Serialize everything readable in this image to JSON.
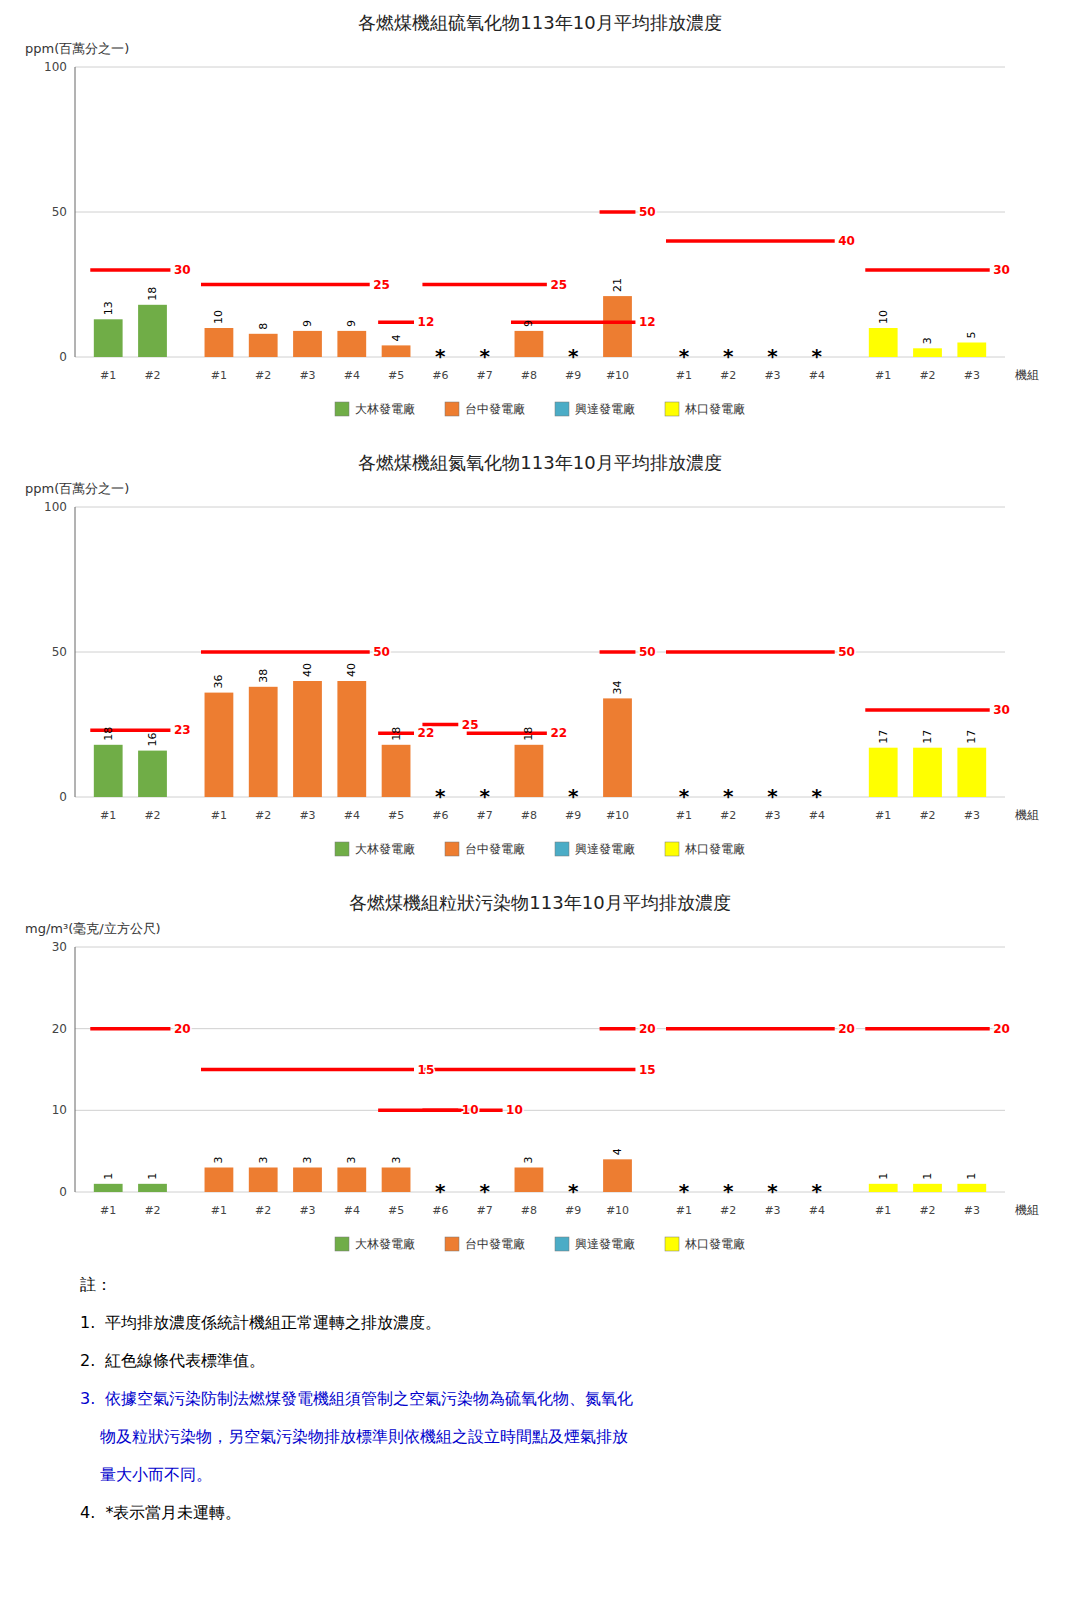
{
  "chart_data": [
    {
      "type": "bar",
      "title": "各燃煤機組硫氧化物113年10月平均排放濃度",
      "y_label": "ppm(百萬分之一)",
      "x_label": "機組",
      "ylim": [
        0,
        100
      ],
      "yticks": [
        0,
        50,
        100
      ],
      "grid": true,
      "legend": "bottom",
      "data_labels": true,
      "series": [
        {
          "name": "大林發電廠",
          "color": "#70AD47",
          "categories": [
            "#1",
            "#2"
          ],
          "values": [
            13,
            18
          ],
          "value_labels": [
            "13",
            "18"
          ]
        },
        {
          "name": "台中發電廠",
          "color": "#ED7D31",
          "categories": [
            "#1",
            "#2",
            "#3",
            "#4",
            "#5",
            "#6",
            "#7",
            "#8",
            "#9",
            "#10"
          ],
          "values": [
            10,
            8,
            9,
            9,
            4,
            null,
            null,
            9,
            null,
            21
          ],
          "value_labels": [
            "10",
            "8",
            "9",
            "9",
            "4",
            "*",
            "*",
            "9",
            "*",
            "21"
          ]
        },
        {
          "name": "興達發電廠",
          "color": "#4BACC6",
          "categories": [
            "#1",
            "#2",
            "#3",
            "#4"
          ],
          "values": [
            null,
            null,
            null,
            null
          ],
          "value_labels": [
            "*",
            "*",
            "*",
            "*"
          ]
        },
        {
          "name": "林口發電廠",
          "color": "#FFFF00",
          "categories": [
            "#1",
            "#2",
            "#3"
          ],
          "values": [
            10,
            3,
            5
          ],
          "value_labels": [
            "10",
            "3",
            "5"
          ]
        }
      ],
      "standards": [
        {
          "value": 30,
          "from": 0,
          "to": 1,
          "color": "#FF0000"
        },
        {
          "value": 25,
          "from": 2,
          "to": 5,
          "color": "#FF0000"
        },
        {
          "value": 12,
          "from": 6,
          "to": 6,
          "color": "#FF0000"
        },
        {
          "value": 25,
          "from": 7,
          "to": 9,
          "color": "#FF0000"
        },
        {
          "value": 12,
          "from": 9,
          "to": 11,
          "color": "#FF0000"
        },
        {
          "value": 50,
          "from": 11,
          "to": 11,
          "color": "#FF0000"
        },
        {
          "value": 40,
          "from": 12,
          "to": 15,
          "color": "#FF0000"
        },
        {
          "value": 30,
          "from": 16,
          "to": 18,
          "color": "#FF0000"
        }
      ]
    },
    {
      "type": "bar",
      "title": "各燃煤機組氮氧化物113年10月平均排放濃度",
      "y_label": "ppm(百萬分之一)",
      "x_label": "機組",
      "ylim": [
        0,
        100
      ],
      "yticks": [
        0,
        50,
        100
      ],
      "grid": true,
      "legend": "bottom",
      "data_labels": true,
      "series": [
        {
          "name": "大林發電廠",
          "color": "#70AD47",
          "categories": [
            "#1",
            "#2"
          ],
          "values": [
            18,
            16
          ],
          "value_labels": [
            "18",
            "16"
          ]
        },
        {
          "name": "台中發電廠",
          "color": "#ED7D31",
          "categories": [
            "#1",
            "#2",
            "#3",
            "#4",
            "#5",
            "#6",
            "#7",
            "#8",
            "#9",
            "#10"
          ],
          "values": [
            36,
            38,
            40,
            40,
            18,
            null,
            null,
            18,
            null,
            34
          ],
          "value_labels": [
            "36",
            "38",
            "40",
            "40",
            "18",
            "*",
            "*",
            "18",
            "*",
            "34"
          ]
        },
        {
          "name": "興達發電廠",
          "color": "#4BACC6",
          "categories": [
            "#1",
            "#2",
            "#3",
            "#4"
          ],
          "values": [
            null,
            null,
            null,
            null
          ],
          "value_labels": [
            "*",
            "*",
            "*",
            "*"
          ]
        },
        {
          "name": "林口發電廠",
          "color": "#FFFF00",
          "categories": [
            "#1",
            "#2",
            "#3"
          ],
          "values": [
            17,
            17,
            17
          ],
          "value_labels": [
            "17",
            "17",
            "17"
          ]
        }
      ],
      "standards": [
        {
          "value": 23,
          "from": 0,
          "to": 1,
          "color": "#FF0000"
        },
        {
          "value": 50,
          "from": 2,
          "to": 5,
          "color": "#FF0000"
        },
        {
          "value": 22,
          "from": 6,
          "to": 6,
          "color": "#FF0000"
        },
        {
          "value": 25,
          "from": 7,
          "to": 7,
          "color": "#FF0000"
        },
        {
          "value": 22,
          "from": 8,
          "to": 9,
          "color": "#FF0000"
        },
        {
          "value": 50,
          "from": 11,
          "to": 11,
          "color": "#FF0000"
        },
        {
          "value": 50,
          "from": 12,
          "to": 15,
          "color": "#FF0000"
        },
        {
          "value": 30,
          "from": 16,
          "to": 18,
          "color": "#FF0000"
        }
      ]
    },
    {
      "type": "bar",
      "title": "各燃煤機組粒狀污染物113年10月平均排放濃度",
      "y_label": "mg/m³(毫克/立方公尺)",
      "x_label": "機組",
      "ylim": [
        0,
        30
      ],
      "yticks": [
        0,
        10,
        20,
        30
      ],
      "grid": true,
      "legend": "bottom",
      "data_labels": true,
      "series": [
        {
          "name": "大林發電廠",
          "color": "#70AD47",
          "categories": [
            "#1",
            "#2"
          ],
          "values": [
            1,
            1
          ],
          "value_labels": [
            "1",
            "1"
          ]
        },
        {
          "name": "台中發電廠",
          "color": "#ED7D31",
          "categories": [
            "#1",
            "#2",
            "#3",
            "#4",
            "#5",
            "#6",
            "#7",
            "#8",
            "#9",
            "#10"
          ],
          "values": [
            3,
            3,
            3,
            3,
            3,
            null,
            null,
            3,
            null,
            4
          ],
          "value_labels": [
            "3",
            "3",
            "3",
            "3",
            "3",
            "*",
            "*",
            "3",
            "*",
            "4"
          ]
        },
        {
          "name": "興達發電廠",
          "color": "#4BACC6",
          "categories": [
            "#1",
            "#2",
            "#3",
            "#4"
          ],
          "values": [
            null,
            null,
            null,
            null
          ],
          "value_labels": [
            "*",
            "*",
            "*",
            "*"
          ]
        },
        {
          "name": "林口發電廠",
          "color": "#FFFF00",
          "categories": [
            "#1",
            "#2",
            "#3"
          ],
          "values": [
            1,
            1,
            1
          ],
          "value_labels": [
            "1",
            "1",
            "1"
          ]
        }
      ],
      "standards": [
        {
          "value": 20,
          "from": 0,
          "to": 1,
          "color": "#FF0000"
        },
        {
          "value": 15,
          "from": 2,
          "to": 6,
          "color": "#FF0000"
        },
        {
          "value": 10,
          "from": 6,
          "to": 7,
          "color": "#FF0000"
        },
        {
          "value": 15,
          "from": 7,
          "to": 11,
          "color": "#FF0000"
        },
        {
          "value": 10,
          "from": 7,
          "to": 8,
          "color": "#FF0000"
        },
        {
          "value": 20,
          "from": 11,
          "to": 11,
          "color": "#FF0000"
        },
        {
          "value": 20,
          "from": 12,
          "to": 15,
          "color": "#FF0000"
        },
        {
          "value": 20,
          "from": 16,
          "to": 18,
          "color": "#FF0000"
        }
      ]
    }
  ],
  "notes": [
    {
      "text": "註：",
      "color": "#000000"
    },
    {
      "text": "1.  平均排放濃度係統計機組正常運轉之排放濃度。",
      "color": "#000000"
    },
    {
      "text": "2.  紅色線條代表標準值。",
      "color": "#000000"
    },
    {
      "text": "3.  依據空氣污染防制法燃煤發電機組須管制之空氣污染物為硫氧化物、氮氧化",
      "color": "#0000CC"
    },
    {
      "text": "    物及粒狀污染物，另空氣污染物排放標準則依機組之設立時間點及煙氣排放",
      "color": "#0000CC"
    },
    {
      "text": "    量大小而不同。",
      "color": "#0000CC"
    },
    {
      "text": "4.  *表示當月未運轉。",
      "color": "#000000"
    }
  ]
}
